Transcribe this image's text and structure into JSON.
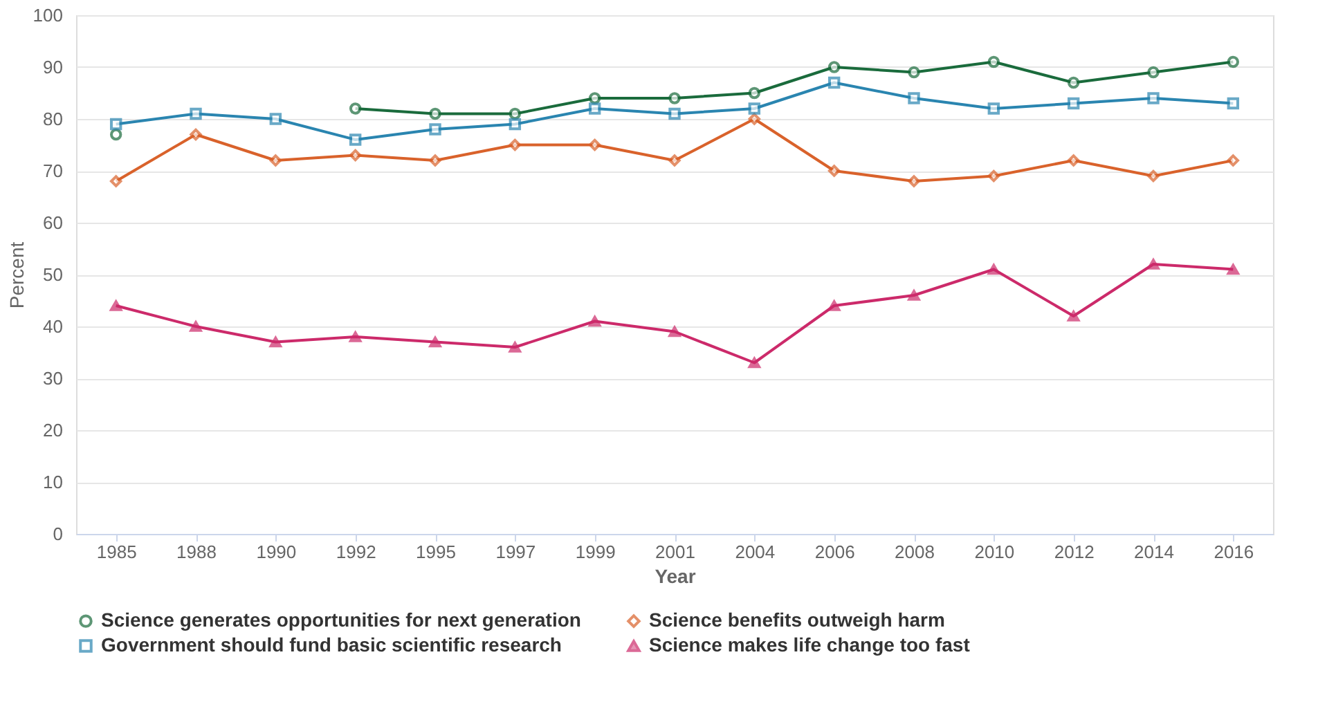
{
  "chart_data": {
    "type": "line",
    "xlabel": "Year",
    "ylabel": "Percent",
    "categories": [
      "1985",
      "1988",
      "1990",
      "1992",
      "1995",
      "1997",
      "1999",
      "2001",
      "2004",
      "2006",
      "2008",
      "2010",
      "2012",
      "2014",
      "2016"
    ],
    "ylim": [
      0,
      100
    ],
    "yticks": [
      0,
      10,
      20,
      30,
      40,
      50,
      60,
      70,
      80,
      90,
      100
    ],
    "grid": "y",
    "legend": "bottom",
    "line_style": "solid",
    "series": [
      {
        "name": "Science generates opportunities for next generation",
        "color": "#1a6b3c",
        "marker": "circle",
        "values": [
          77,
          null,
          null,
          82,
          81,
          81,
          84,
          84,
          85,
          90,
          89,
          91,
          87,
          89,
          91
        ]
      },
      {
        "name": "Science benefits outweigh harm",
        "color": "#d9622b",
        "marker": "diamond",
        "values": [
          68,
          77,
          72,
          73,
          72,
          75,
          75,
          72,
          80,
          70,
          68,
          69,
          72,
          69,
          72
        ]
      },
      {
        "name": "Government should fund basic scientific research",
        "color": "#2a85b0",
        "marker": "square",
        "values": [
          79,
          81,
          80,
          76,
          78,
          79,
          82,
          81,
          82,
          87,
          84,
          82,
          83,
          84,
          83
        ]
      },
      {
        "name": "Science makes life change too fast",
        "color": "#cc2a6a",
        "marker": "triangle",
        "values": [
          44,
          40,
          37,
          38,
          37,
          36,
          41,
          39,
          33,
          44,
          46,
          51,
          42,
          52,
          51
        ]
      }
    ]
  }
}
